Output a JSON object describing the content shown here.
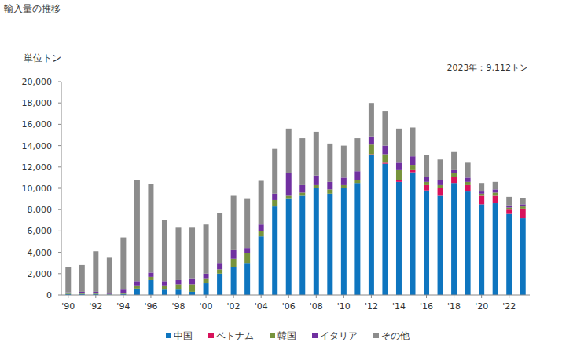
{
  "chart_data": {
    "type": "bar",
    "title": "輸入量の推移",
    "y_label": "単位トン",
    "annotation": "2023年：9,112トン",
    "stacked": true,
    "grid": false,
    "legend": "bottom",
    "categories": [
      "'90",
      null,
      "'92",
      null,
      "'94",
      null,
      "'96",
      null,
      "'98",
      null,
      "'00",
      null,
      "'02",
      null,
      "'04",
      null,
      "'06",
      null,
      "'08",
      null,
      "'10",
      null,
      "'12",
      null,
      "'14",
      null,
      "'16",
      null,
      "'18",
      null,
      "'20",
      null,
      "'22",
      null
    ],
    "ylim": [
      0,
      20000
    ],
    "yticks": [
      0,
      {
        "value": 2000,
        "label": "2,000"
      },
      {
        "value": 4000,
        "label": "4,000"
      },
      {
        "value": 6000,
        "label": "6,000"
      },
      {
        "value": 8000,
        "label": "8,000"
      },
      {
        "value": 10000,
        "label": "10,000"
      },
      {
        "value": 12000,
        "label": "12,000"
      },
      {
        "value": 14000,
        "label": "14,000"
      },
      {
        "value": 16000,
        "label": "16,000"
      },
      {
        "value": 18000,
        "label": "18,000"
      },
      {
        "value": 20000,
        "label": "20,000"
      }
    ],
    "series": [
      {
        "name": "中国",
        "color": "#0e75bf",
        "values": [
          100,
          100,
          100,
          50,
          100,
          600,
          1400,
          500,
          500,
          300,
          1100,
          2000,
          2600,
          3000,
          5500,
          8300,
          9000,
          9300,
          10000,
          9500,
          10000,
          10500,
          13100,
          12300,
          10600,
          11500,
          9800,
          9300,
          10500,
          9700,
          8500,
          8600,
          7600,
          7200
        ]
      },
      {
        "name": "ベトナム",
        "color": "#d8125b",
        "values": [
          0,
          0,
          0,
          0,
          0,
          0,
          0,
          0,
          0,
          0,
          0,
          0,
          0,
          0,
          0,
          0,
          0,
          0,
          0,
          0,
          0,
          0,
          100,
          100,
          200,
          200,
          500,
          700,
          600,
          600,
          800,
          700,
          400,
          900
        ]
      },
      {
        "name": "韓国",
        "color": "#77933c",
        "values": [
          50,
          50,
          50,
          50,
          100,
          300,
          300,
          400,
          500,
          700,
          400,
          400,
          800,
          900,
          500,
          600,
          300,
          300,
          300,
          400,
          300,
          300,
          900,
          800,
          900,
          500,
          300,
          300,
          300,
          300,
          200,
          300,
          200,
          200
        ]
      },
      {
        "name": "イタリア",
        "color": "#7030a0",
        "values": [
          100,
          150,
          150,
          100,
          300,
          400,
          400,
          400,
          400,
          500,
          500,
          600,
          800,
          500,
          600,
          600,
          2100,
          700,
          900,
          700,
          700,
          800,
          700,
          800,
          700,
          800,
          500,
          500,
          300,
          400,
          200,
          300,
          200,
          200
        ]
      },
      {
        "name": "その他",
        "color": "#8c8c8c",
        "values": [
          2350,
          2500,
          3800,
          3300,
          4900,
          9500,
          8300,
          5700,
          4900,
          4800,
          4600,
          4700,
          5100,
          4600,
          4100,
          4200,
          4200,
          4400,
          4100,
          3600,
          3000,
          3100,
          3200,
          3200,
          3200,
          2700,
          2000,
          1900,
          1700,
          1400,
          800,
          700,
          800,
          612
        ]
      }
    ]
  }
}
